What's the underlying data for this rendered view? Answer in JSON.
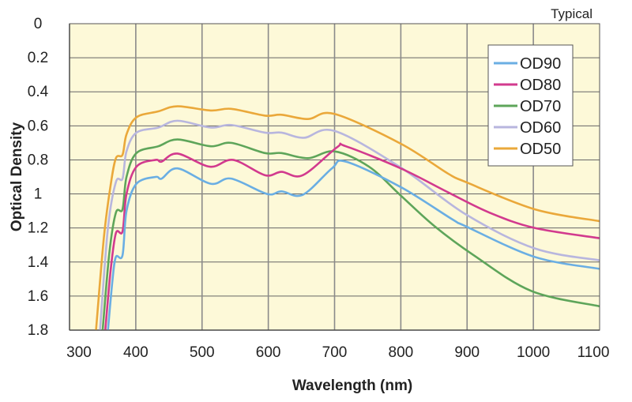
{
  "chart_data": {
    "type": "line",
    "title": "",
    "annotation": "Typical",
    "xlabel": "Wavelength (nm)",
    "ylabel": "Optical Density",
    "xlim": [
      300,
      1100
    ],
    "ylim": [
      0,
      1.8
    ],
    "y_inverted": true,
    "grid": true,
    "legend_position": "top-right",
    "background_color": "#fdf9d8",
    "x_ticks": [
      300,
      400,
      500,
      600,
      700,
      800,
      900,
      1000,
      1100
    ],
    "y_ticks": [
      0,
      0.2,
      0.4,
      0.6,
      0.8,
      1,
      1.2,
      1.4,
      1.6,
      1.8
    ],
    "series": [
      {
        "name": "OD90",
        "color": "#6aaee3",
        "x": [
          358,
          365,
          370,
          380,
          386,
          401,
          430,
          439,
          463,
          513,
          544,
          598,
          620,
          652,
          696,
          717,
          800,
          878,
          898,
          1002,
          1100
        ],
        "y": [
          1.8,
          1.5,
          1.37,
          1.36,
          1.1,
          0.94,
          0.9,
          0.91,
          0.85,
          0.94,
          0.91,
          1.0,
          0.985,
          1.005,
          0.85,
          0.81,
          0.96,
          1.15,
          1.19,
          1.37,
          1.44
        ]
      },
      {
        "name": "OD80",
        "color": "#d23a8e",
        "x": [
          354,
          362,
          370,
          380,
          386,
          401,
          430,
          439,
          463,
          512,
          547,
          595,
          620,
          652,
          704,
          717,
          800,
          871,
          934,
          1002,
          1100
        ],
        "y": [
          1.8,
          1.45,
          1.23,
          1.22,
          1.0,
          0.84,
          0.8,
          0.81,
          0.763,
          0.84,
          0.8,
          0.89,
          0.87,
          0.89,
          0.725,
          0.72,
          0.85,
          0.99,
          1.11,
          1.2,
          1.26
        ]
      },
      {
        "name": "OD70",
        "color": "#5ea55a",
        "x": [
          350,
          360,
          370,
          380,
          386,
          401,
          434,
          463,
          513,
          544,
          595,
          620,
          660,
          700,
          752,
          800,
          851,
          910,
          997,
          1100
        ],
        "y": [
          1.8,
          1.35,
          1.11,
          1.09,
          0.9,
          0.76,
          0.72,
          0.68,
          0.72,
          0.7,
          0.76,
          0.76,
          0.79,
          0.75,
          0.84,
          1.01,
          1.19,
          1.36,
          1.57,
          1.66
        ]
      },
      {
        "name": "OD60",
        "color": "#b8b6de",
        "x": [
          346,
          358,
          370,
          380,
          386,
          401,
          434,
          463,
          513,
          544,
          595,
          620,
          654,
          700,
          800,
          898,
          1002,
          1100
        ],
        "y": [
          1.8,
          1.2,
          0.93,
          0.91,
          0.75,
          0.64,
          0.61,
          0.57,
          0.61,
          0.595,
          0.64,
          0.64,
          0.67,
          0.63,
          0.845,
          1.12,
          1.32,
          1.39
        ]
      },
      {
        "name": "OD50",
        "color": "#eaa83a",
        "x": [
          340,
          352,
          362,
          370,
          380,
          386,
          401,
          434,
          463,
          513,
          544,
          595,
          620,
          660,
          700,
          800,
          871,
          898,
          1002,
          1100
        ],
        "y": [
          1.8,
          1.25,
          0.95,
          0.79,
          0.77,
          0.65,
          0.55,
          0.515,
          0.485,
          0.51,
          0.5,
          0.54,
          0.535,
          0.56,
          0.53,
          0.705,
          0.88,
          0.93,
          1.09,
          1.16
        ]
      }
    ]
  }
}
